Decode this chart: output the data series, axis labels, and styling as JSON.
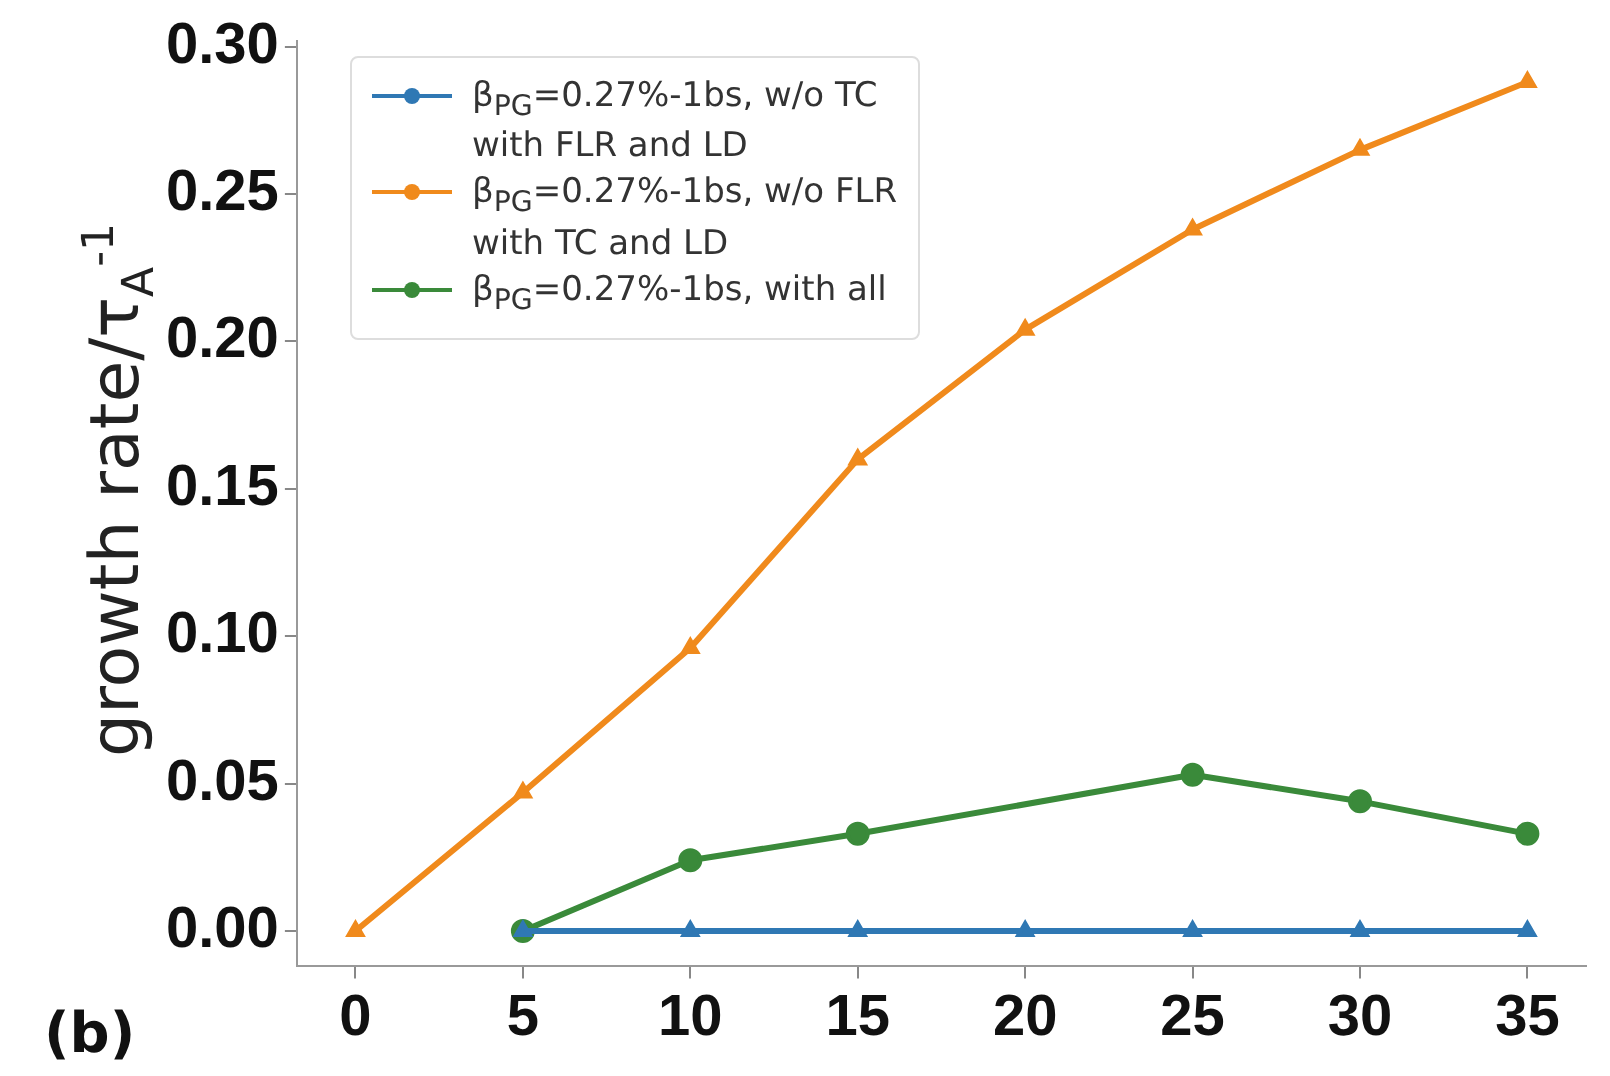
{
  "chart_data": {
    "type": "line",
    "ylabel": "growth rate/τ$_{A}$$^{-1}$",
    "annotations": [
      "(b)"
    ],
    "xlim": [
      -1.75,
      36.75
    ],
    "xticks": [
      0,
      5,
      10,
      15,
      20,
      25,
      30,
      35
    ],
    "ylim": [
      -0.012,
      0.302
    ],
    "yticks": [
      {
        "value": 0,
        "label": "0.00"
      },
      0.05,
      {
        "value": 0.1,
        "label": "0.10"
      },
      0.15,
      {
        "value": 0.2,
        "label": "0.20"
      },
      0.25,
      {
        "value": 0.3,
        "label": "0.30"
      }
    ],
    "grid": false,
    "legend": "top left",
    "line_style": "solid",
    "series": [
      {
        "name": "β$_{PG}$=0.27%-1bs, w/o TC\nwith FLR and LD",
        "color": "#2f78b4",
        "marker": "triangle",
        "x": [
          5,
          10,
          15,
          20,
          25,
          30,
          35
        ],
        "values": [
          0,
          0,
          0,
          0,
          0,
          0,
          0
        ]
      },
      {
        "name": "β$_{PG}$=0.27%-1bs, w/o FLR\nwith TC and LD",
        "color": "#f08a1c",
        "marker": "triangle",
        "x": [
          0,
          5,
          10,
          15,
          20,
          25,
          30,
          35
        ],
        "values": [
          0,
          0.047,
          0.096,
          0.16,
          0.204,
          0.238,
          0.265,
          0.288
        ]
      },
      {
        "name": "β$_{PG}$=0.27%-1bs, with all",
        "color": "#3a8a3a",
        "marker": "circle",
        "x": [
          5,
          10,
          15,
          25,
          30,
          35
        ],
        "values": [
          0,
          0.024,
          0.033,
          0.053,
          0.044,
          0.033
        ]
      }
    ]
  }
}
